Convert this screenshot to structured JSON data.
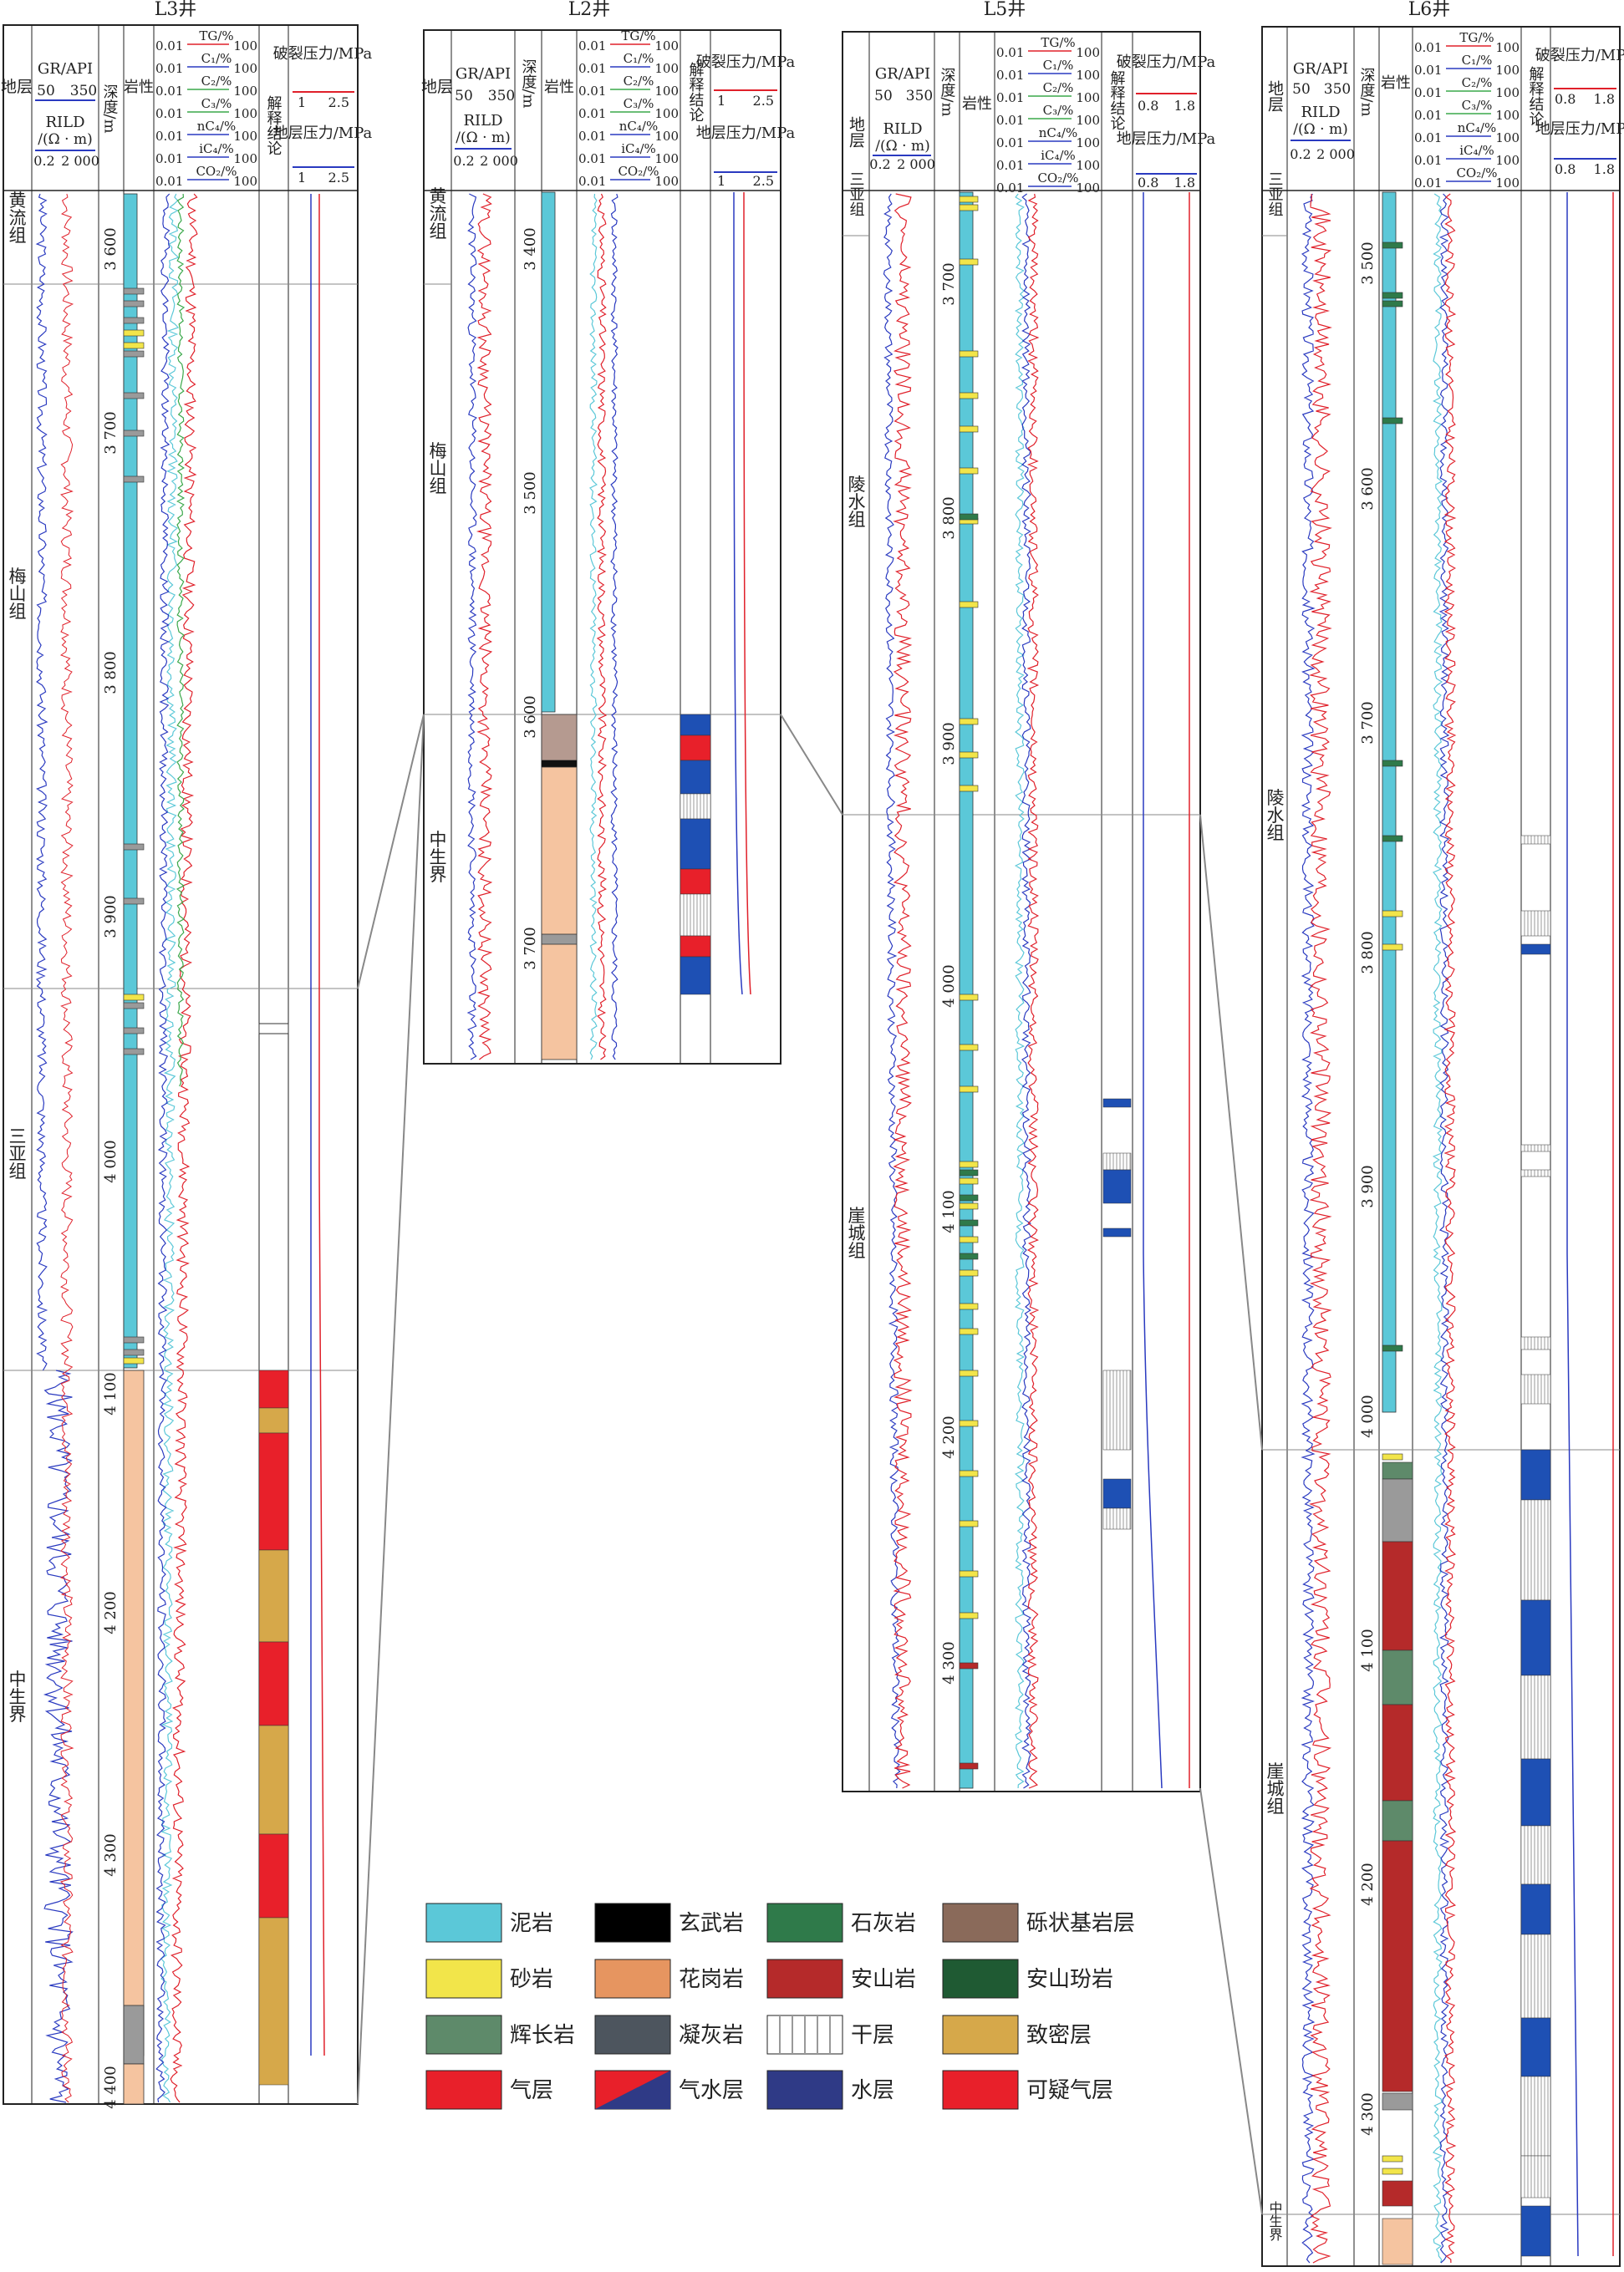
{
  "wells": [
    {
      "id": "L3",
      "title": "L3井",
      "header": {
        "strata": "地层",
        "gr": "GR/API",
        "gr_min": "50",
        "gr_max": "350",
        "rild": "RILD",
        "rild_unit": "/(Ω · m)",
        "rild_min": "0.2",
        "rild_max": "2 000",
        "depth": "深度/m",
        "lith": "岩性",
        "gas": [
          "TG/%",
          "C₁/%",
          "C₂/%",
          "C₃/%",
          "nC₄/%",
          "iC₄/%",
          "CO₂/%"
        ],
        "gas_min": "0.01",
        "gas_max": "100",
        "interp": "解释结论",
        "frac": "破裂压力/MPa",
        "frac_min": "1",
        "frac_max": "2.5",
        "pore": "地层压力/MPa",
        "pore_min": "1",
        "pore_max": "2.5"
      },
      "formations": [
        "黄流组",
        "梅山组",
        "三亚组",
        "中生界"
      ],
      "depth_ticks": [
        "3 600",
        "3 700",
        "3 800",
        "3 900",
        "4 000",
        "4 100",
        "4 200",
        "4 300",
        "4 400"
      ]
    },
    {
      "id": "L2",
      "title": "L2井",
      "header": {
        "strata": "地层",
        "gr": "GR/API",
        "gr_min": "50",
        "gr_max": "350",
        "rild": "RILD",
        "rild_unit": "/(Ω · m)",
        "rild_min": "0.2",
        "rild_max": "2 000",
        "depth": "深度/m",
        "lith": "岩性",
        "gas": [
          "TG/%",
          "C₁/%",
          "C₂/%",
          "C₃/%",
          "nC₄/%",
          "iC₄/%",
          "CO₂/%"
        ],
        "gas_min": "0.01",
        "gas_max": "100",
        "interp": "解释结论",
        "frac": "破裂压力/MPa",
        "frac_min": "1",
        "frac_max": "2.5",
        "pore": "地层压力/MPa",
        "pore_min": "1",
        "pore_max": "2.5"
      },
      "formations": [
        "黄流组",
        "梅山组",
        "中生界"
      ],
      "depth_ticks": [
        "3 400",
        "3 500",
        "3 600",
        "3 700"
      ]
    },
    {
      "id": "L5",
      "title": "L5井",
      "header": {
        "strata": "地层",
        "gr": "GR/API",
        "gr_min": "50",
        "gr_max": "350",
        "rild": "RILD",
        "rild_unit": "/(Ω · m)",
        "rild_min": "0.2",
        "rild_max": "2 000",
        "depth": "深度/m",
        "lith": "岩性",
        "gas": [
          "TG/%",
          "C₁/%",
          "C₂/%",
          "C₃/%",
          "nC₄/%",
          "iC₄/%",
          "CO₂/%"
        ],
        "gas_min": "0.01",
        "gas_max": "100",
        "interp": "解释结论",
        "frac": "破裂压力/MPa",
        "frac_min": "0.8",
        "frac_max": "1.8",
        "pore": "地层压力/MPa",
        "pore_min": "0.8",
        "pore_max": "1.8"
      },
      "formations": [
        "三亚组",
        "陵水组",
        "崖城组"
      ],
      "depth_ticks": [
        "3 700",
        "3 800",
        "3 900",
        "4 000",
        "4 100",
        "4 200",
        "4 300"
      ]
    },
    {
      "id": "L6",
      "title": "L6井",
      "header": {
        "strata": "地层",
        "gr": "GR/API",
        "gr_min": "50",
        "gr_max": "350",
        "rild": "RILD",
        "rild_unit": "/(Ω · m)",
        "rild_min": "0.2",
        "rild_max": "2 000",
        "depth": "深度/m",
        "lith": "岩性",
        "gas": [
          "TG/%",
          "C₁/%",
          "C₂/%",
          "C₃/%",
          "nC₄/%",
          "iC₄/%",
          "CO₂/%"
        ],
        "gas_min": "0.01",
        "gas_max": "100",
        "interp": "解释结论",
        "frac": "破裂压力/MPa",
        "frac_min": "0.8",
        "frac_max": "1.8",
        "pore": "地层压力/MPa",
        "pore_min": "0.8",
        "pore_max": "1.8"
      },
      "formations": [
        "三亚组",
        "陵水组",
        "崖城组",
        "中生界"
      ],
      "depth_ticks": [
        "3 500",
        "3 600",
        "3 700",
        "3 800",
        "3 900",
        "4 000",
        "4 100",
        "4 200",
        "4 300"
      ]
    }
  ],
  "legend": [
    {
      "label": "泥岩",
      "key": "mudstone",
      "color": "#5bc8d8"
    },
    {
      "label": "玄武岩",
      "key": "basalt",
      "color": "#000000"
    },
    {
      "label": "石灰岩",
      "key": "limestone",
      "color": "#2f7a4a"
    },
    {
      "label": "砾状基岩层",
      "key": "conglomerate-basement",
      "color": "#8a6a5a"
    },
    {
      "label": "砂岩",
      "key": "sandstone",
      "color": "#f2e54a"
    },
    {
      "label": "花岗岩",
      "key": "granite",
      "color": "#e69560"
    },
    {
      "label": "安山岩",
      "key": "andesite",
      "color": "#b52a2a"
    },
    {
      "label": "安山玢岩",
      "key": "andesite-porphyry",
      "color": "#1f5a33"
    },
    {
      "label": "辉长岩",
      "key": "gabbro",
      "color": "#5e8a6a"
    },
    {
      "label": "凝灰岩",
      "key": "tuff",
      "color": "#4d555e"
    },
    {
      "label": "干层",
      "key": "dry-layer",
      "color": "#ffffff"
    },
    {
      "label": "致密层",
      "key": "tight-layer",
      "color": "#d6a84a"
    },
    {
      "label": "气层",
      "key": "gas-layer",
      "color": "#e8202a"
    },
    {
      "label": "气水层",
      "key": "gas-water-layer",
      "color": "#e8202a"
    },
    {
      "label": "水层",
      "key": "water-layer",
      "color": "#2f3a86"
    },
    {
      "label": "可疑气层",
      "key": "suspect-gas-layer",
      "color": "#e8202a"
    }
  ],
  "colors": {
    "gr": "#2a3ac0",
    "rild": "#e0202a",
    "tg": "#e0202a",
    "c1": "#2a3ac0",
    "c2": "#3aa84a",
    "mud": "#5bc8d8",
    "granite": "#f5c4a0",
    "interp_blue": "#1e50b4"
  }
}
